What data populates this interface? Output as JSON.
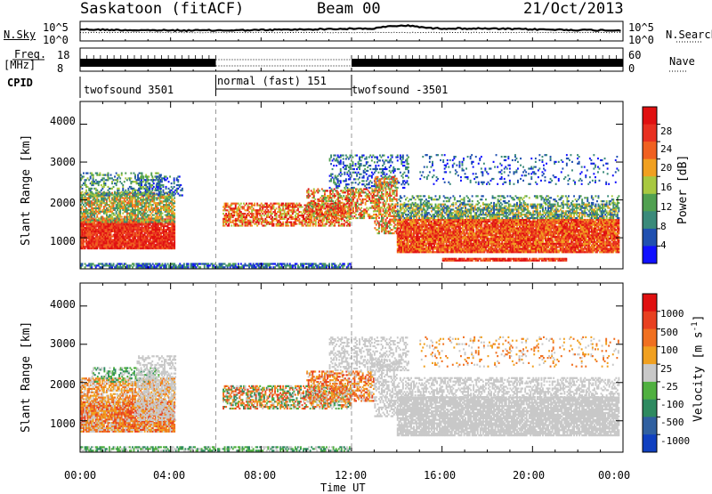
{
  "header": {
    "station": "Saskatoon (fitACF)",
    "beam": "Beam 00",
    "date": "21/Oct/2013"
  },
  "top_panels": {
    "nsky_label": "N.Sky",
    "nsky_ticks": [
      "10^5",
      "10^0"
    ],
    "nsearch_label": "N.Search",
    "nsearch_ticks": [
      "10^5",
      "10^0"
    ],
    "freq_label": "Freq.",
    "freq_unit": "[MHz]",
    "freq_ticks": [
      "18",
      "8"
    ],
    "nave_label": "Nave",
    "nave_ticks": [
      "60",
      "0"
    ],
    "cpid_label": "CPID",
    "cpid_segments": [
      {
        "label": "twofsound 3501",
        "start": 0,
        "end": 6
      },
      {
        "label": "normal (fast) 151",
        "start": 6,
        "end": 12
      },
      {
        "label": "twofsound -3501",
        "start": 12,
        "end": 24
      }
    ]
  },
  "chart_data": [
    {
      "type": "heatmap",
      "name": "power",
      "ylabel": "Slant Range [km]",
      "ylim": [
        180,
        4600
      ],
      "yticks": [
        "1000",
        "2000",
        "3000",
        "4000"
      ],
      "xlim": [
        0,
        24
      ],
      "colorbar": {
        "label": "Power [dB]",
        "ticks": [
          "4",
          "8",
          "12",
          "16",
          "20",
          "24",
          "28"
        ],
        "colors": [
          "#1010ff",
          "#2050b0",
          "#3a8a7a",
          "#50a050",
          "#a8c840",
          "#f0a020",
          "#f06020",
          "#e83020",
          "#e01010"
        ]
      }
    },
    {
      "type": "heatmap",
      "name": "velocity",
      "ylabel": "Slant Range [km]",
      "ylim": [
        180,
        4600
      ],
      "yticks": [
        "1000",
        "2000",
        "3000",
        "4000"
      ],
      "xlabel": "Time UT",
      "xticks": [
        "00:00",
        "04:00",
        "08:00",
        "12:00",
        "16:00",
        "20:00",
        "00:00"
      ],
      "xlim": [
        0,
        24
      ],
      "colorbar": {
        "label": "Velocity [m s",
        "label_sup": "-1",
        "label_end": "]",
        "ticks": [
          "1000",
          "500",
          "100",
          "25",
          "-25",
          "-100",
          "-500",
          "-1000"
        ],
        "colors": [
          "#1040c0",
          "#3060a0",
          "#2e8a60",
          "#50b040",
          "#c8c8c8",
          "#f0a020",
          "#f07020",
          "#e84020",
          "#e01010"
        ]
      }
    }
  ]
}
